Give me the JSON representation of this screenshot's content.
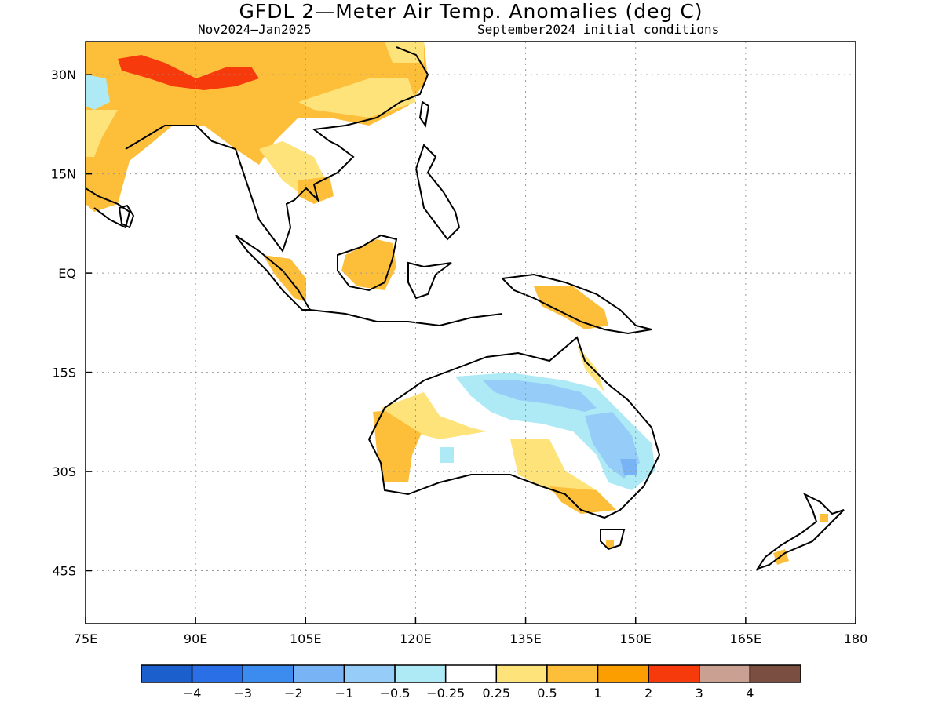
{
  "title": "GFDL 2—Meter Air Temp. Anomalies (deg C)",
  "subtitle_left": "Nov2024—Jan2025",
  "subtitle_right": "September2024 initial conditions",
  "map": {
    "lon_range": [
      75,
      180
    ],
    "lat_range": [
      -53,
      35
    ],
    "lat_ticks": [
      {
        "value": 30,
        "label": "30N"
      },
      {
        "value": 15,
        "label": "15N"
      },
      {
        "value": 0,
        "label": "EQ"
      },
      {
        "value": -15,
        "label": "15S"
      },
      {
        "value": -30,
        "label": "30S"
      },
      {
        "value": -45,
        "label": "45S"
      }
    ],
    "lon_ticks": [
      {
        "value": 75,
        "label": "75E"
      },
      {
        "value": 90,
        "label": "90E"
      },
      {
        "value": 105,
        "label": "105E"
      },
      {
        "value": 120,
        "label": "120E"
      },
      {
        "value": 135,
        "label": "135E"
      },
      {
        "value": 150,
        "label": "150E"
      },
      {
        "value": 165,
        "label": "165E"
      },
      {
        "value": 180,
        "label": "180"
      }
    ],
    "grid": true
  },
  "colorbar": {
    "colors": [
      "#1a5fcc",
      "#2b6fe6",
      "#3c8cf0",
      "#78b4f5",
      "#96cdf8",
      "#aeeaf6",
      "#ffffff",
      "#fde37a",
      "#fdbe3a",
      "#fd9e00",
      "#f73a0c",
      "#c9a092",
      "#7a4f42"
    ],
    "labels": [
      "−4",
      "−3",
      "−2",
      "−1",
      "−0.5",
      "−0.25",
      "0.25",
      "0.5",
      "1",
      "2",
      "3",
      "4"
    ]
  }
}
